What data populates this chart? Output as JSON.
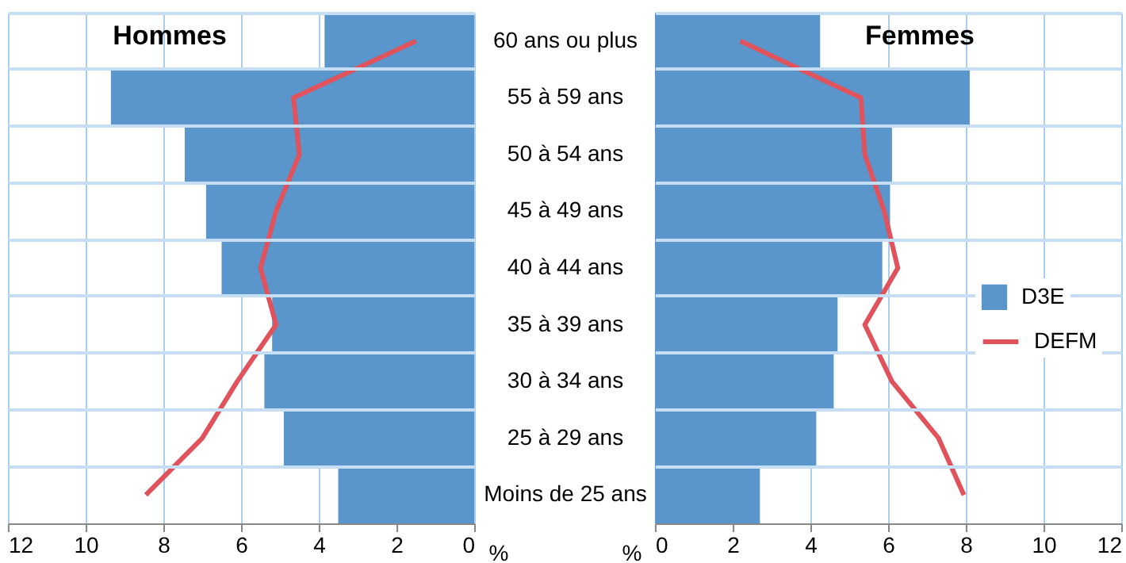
{
  "chart_data": [
    {
      "type": "bar",
      "orientation": "horizontal",
      "title": "Hommes",
      "xlabel": "%",
      "categories": [
        "60 ans ou plus",
        "55 à 59 ans",
        "50 à 54 ans",
        "45 à 49 ans",
        "40 à 44 ans",
        "35 à 39 ans",
        "30 à 34 ans",
        "25 à 29 ans",
        "Moins de 25 ans"
      ],
      "series": [
        {
          "color": "#5a95cb",
          "values": [
            3.85,
            9.35,
            7.45,
            6.9,
            6.5,
            5.2,
            5.4,
            4.9,
            3.5
          ]
        },
        {
          "type": "line",
          "color": "#e0525c",
          "values": [
            1.5,
            4.65,
            4.5,
            5.1,
            5.5,
            5.1,
            6.1,
            7.0,
            8.45
          ]
        }
      ],
      "xlim": [
        12,
        0
      ],
      "xticks": [
        12,
        10,
        8,
        6,
        4,
        2,
        0
      ],
      "grid": true,
      "legend": false
    },
    {
      "type": "bar",
      "orientation": "horizontal",
      "title": "Femmes",
      "xlabel": "%",
      "categories": [
        "60 ans ou plus",
        "55 à 59 ans",
        "50 à 54 ans",
        "45 à 49 ans",
        "40 à 44 ans",
        "35 à 39 ans",
        "30 à 34 ans",
        "25 à 29 ans",
        "Moins de 25 ans"
      ],
      "series": [
        {
          "name": "D3E",
          "color": "#5a95cb",
          "values": [
            4.25,
            8.1,
            6.1,
            6.05,
            5.85,
            4.7,
            4.6,
            4.15,
            2.7
          ]
        },
        {
          "name": "DEFM",
          "type": "line",
          "color": "#e0525c",
          "values": [
            2.2,
            5.3,
            5.4,
            5.9,
            6.25,
            5.4,
            6.1,
            7.3,
            7.95
          ]
        }
      ],
      "xlim": [
        0,
        12
      ],
      "xticks": [
        0,
        2,
        4,
        6,
        8,
        10,
        12
      ],
      "grid": true,
      "legend": "right",
      "tick_labels": "x"
    }
  ]
}
